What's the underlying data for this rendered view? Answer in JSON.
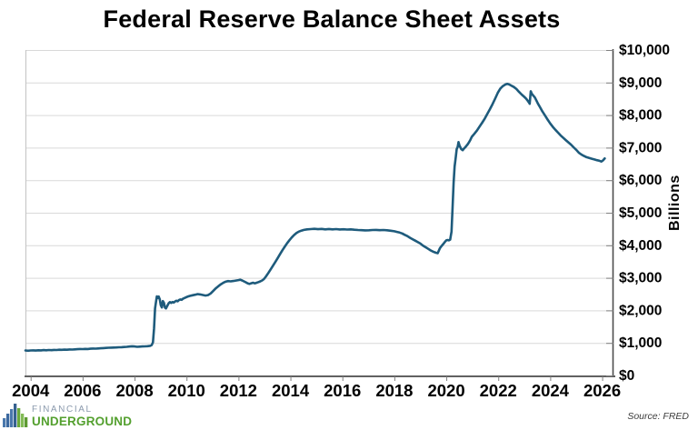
{
  "title": "Federal Reserve Balance Sheet Assets",
  "source_note": "Source: FRED",
  "logo": {
    "line1": "FINANCIAL",
    "line2": "UNDERGROUND",
    "financial_color": "#8b9aad",
    "underground_color": "#54a02f",
    "bars": [
      {
        "h": 10,
        "color": "#4a78ad"
      },
      {
        "h": 15,
        "color": "#3c699f"
      },
      {
        "h": 20,
        "color": "#4a78ad"
      },
      {
        "h": 26,
        "color": "#35618f"
      },
      {
        "h": 21,
        "color": "#6aa93c"
      },
      {
        "h": 15,
        "color": "#82bb55"
      },
      {
        "h": 11,
        "color": "#5d9a31"
      }
    ]
  },
  "chart_data": {
    "type": "line",
    "title": "Federal Reserve Balance Sheet Assets",
    "xlabel": "",
    "ylabel": "Billions",
    "xlim": [
      2003.8,
      2026.4
    ],
    "ylim": [
      0,
      10000
    ],
    "grid": "horizontal",
    "legend": "none",
    "y_axis_side": "right",
    "colors": {
      "gridline": "#d9d9d9",
      "plot_border": "#c3c3c3",
      "axis": "#4d4d4d",
      "tick": "#7f7f7f",
      "text": "#000000"
    },
    "x_ticks": [
      {
        "v": 2004,
        "label": "2004"
      },
      {
        "v": 2006,
        "label": "2006"
      },
      {
        "v": 2008,
        "label": "2008"
      },
      {
        "v": 2010,
        "label": "2010"
      },
      {
        "v": 2012,
        "label": "2012"
      },
      {
        "v": 2014,
        "label": "2014"
      },
      {
        "v": 2016,
        "label": "2016"
      },
      {
        "v": 2018,
        "label": "2018"
      },
      {
        "v": 2020,
        "label": "2020"
      },
      {
        "v": 2022,
        "label": "2022"
      },
      {
        "v": 2024,
        "label": "2024"
      },
      {
        "v": 2026,
        "label": "2026"
      }
    ],
    "y_ticks": [
      {
        "v": 0,
        "label": "$0"
      },
      {
        "v": 1000,
        "label": "$1,000"
      },
      {
        "v": 2000,
        "label": "$2,000"
      },
      {
        "v": 3000,
        "label": "$3,000"
      },
      {
        "v": 4000,
        "label": "$4,000"
      },
      {
        "v": 5000,
        "label": "$5,000"
      },
      {
        "v": 6000,
        "label": "$6,000"
      },
      {
        "v": 7000,
        "label": "$7,000"
      },
      {
        "v": 8000,
        "label": "$8,000"
      },
      {
        "v": 9000,
        "label": "$9,000"
      },
      {
        "v": 10000,
        "label": "$10,000"
      }
    ],
    "series": [
      {
        "name": "Federal Reserve Balance Sheet Assets ($ Billions)",
        "color": "#1e5b7c",
        "points": [
          [
            2003.8,
            768
          ],
          [
            2003.9,
            761
          ],
          [
            2004.0,
            767
          ],
          [
            2004.1,
            772
          ],
          [
            2004.2,
            766
          ],
          [
            2004.3,
            774
          ],
          [
            2004.4,
            770
          ],
          [
            2004.5,
            778
          ],
          [
            2004.6,
            774
          ],
          [
            2004.7,
            781
          ],
          [
            2004.8,
            777
          ],
          [
            2004.9,
            786
          ],
          [
            2005.0,
            783
          ],
          [
            2005.1,
            790
          ],
          [
            2005.2,
            787
          ],
          [
            2005.3,
            794
          ],
          [
            2005.4,
            791
          ],
          [
            2005.5,
            799
          ],
          [
            2005.6,
            796
          ],
          [
            2005.7,
            803
          ],
          [
            2005.8,
            807
          ],
          [
            2005.9,
            814
          ],
          [
            2006.0,
            811
          ],
          [
            2006.1,
            817
          ],
          [
            2006.2,
            814
          ],
          [
            2006.3,
            821
          ],
          [
            2006.4,
            827
          ],
          [
            2006.5,
            824
          ],
          [
            2006.6,
            831
          ],
          [
            2006.7,
            835
          ],
          [
            2006.8,
            841
          ],
          [
            2006.9,
            846
          ],
          [
            2007.0,
            851
          ],
          [
            2007.1,
            854
          ],
          [
            2007.2,
            857
          ],
          [
            2007.3,
            861
          ],
          [
            2007.4,
            865
          ],
          [
            2007.5,
            869
          ],
          [
            2007.6,
            873
          ],
          [
            2007.7,
            879
          ],
          [
            2007.8,
            889
          ],
          [
            2007.9,
            897
          ],
          [
            2008.0,
            891
          ],
          [
            2008.1,
            881
          ],
          [
            2008.2,
            886
          ],
          [
            2008.3,
            890
          ],
          [
            2008.4,
            894
          ],
          [
            2008.5,
            900
          ],
          [
            2008.6,
            912
          ],
          [
            2008.66,
            932
          ],
          [
            2008.71,
            1020
          ],
          [
            2008.75,
            1450
          ],
          [
            2008.79,
            2060
          ],
          [
            2008.83,
            2290
          ],
          [
            2008.86,
            2430
          ],
          [
            2008.9,
            2380
          ],
          [
            2008.93,
            2425
          ],
          [
            2008.97,
            2340
          ],
          [
            2009.01,
            2160
          ],
          [
            2009.05,
            2090
          ],
          [
            2009.09,
            2285
          ],
          [
            2009.13,
            2230
          ],
          [
            2009.17,
            2085
          ],
          [
            2009.21,
            2060
          ],
          [
            2009.26,
            2140
          ],
          [
            2009.31,
            2215
          ],
          [
            2009.36,
            2255
          ],
          [
            2009.41,
            2230
          ],
          [
            2009.46,
            2258
          ],
          [
            2009.51,
            2240
          ],
          [
            2009.56,
            2275
          ],
          [
            2009.61,
            2295
          ],
          [
            2009.66,
            2280
          ],
          [
            2009.71,
            2315
          ],
          [
            2009.76,
            2335
          ],
          [
            2009.81,
            2325
          ],
          [
            2009.86,
            2355
          ],
          [
            2009.91,
            2375
          ],
          [
            2009.96,
            2395
          ],
          [
            2010.03,
            2420
          ],
          [
            2010.13,
            2445
          ],
          [
            2010.23,
            2465
          ],
          [
            2010.33,
            2480
          ],
          [
            2010.43,
            2500
          ],
          [
            2010.53,
            2490
          ],
          [
            2010.63,
            2472
          ],
          [
            2010.73,
            2455
          ],
          [
            2010.83,
            2468
          ],
          [
            2010.93,
            2520
          ],
          [
            2011.03,
            2600
          ],
          [
            2011.13,
            2680
          ],
          [
            2011.23,
            2745
          ],
          [
            2011.33,
            2805
          ],
          [
            2011.43,
            2855
          ],
          [
            2011.5,
            2880
          ],
          [
            2011.6,
            2900
          ],
          [
            2011.7,
            2890
          ],
          [
            2011.8,
            2903
          ],
          [
            2011.9,
            2915
          ],
          [
            2012.0,
            2930
          ],
          [
            2012.07,
            2940
          ],
          [
            2012.14,
            2918
          ],
          [
            2012.21,
            2890
          ],
          [
            2012.28,
            2862
          ],
          [
            2012.35,
            2832
          ],
          [
            2012.42,
            2812
          ],
          [
            2012.49,
            2832
          ],
          [
            2012.56,
            2850
          ],
          [
            2012.63,
            2830
          ],
          [
            2012.7,
            2850
          ],
          [
            2012.77,
            2870
          ],
          [
            2012.84,
            2890
          ],
          [
            2012.91,
            2920
          ],
          [
            2012.98,
            2962
          ],
          [
            2013.06,
            3045
          ],
          [
            2013.15,
            3150
          ],
          [
            2013.24,
            3260
          ],
          [
            2013.33,
            3375
          ],
          [
            2013.42,
            3490
          ],
          [
            2013.51,
            3610
          ],
          [
            2013.6,
            3725
          ],
          [
            2013.69,
            3845
          ],
          [
            2013.78,
            3955
          ],
          [
            2013.87,
            4060
          ],
          [
            2013.96,
            4155
          ],
          [
            2014.05,
            4240
          ],
          [
            2014.14,
            4315
          ],
          [
            2014.23,
            4375
          ],
          [
            2014.32,
            4420
          ],
          [
            2014.42,
            4450
          ],
          [
            2014.52,
            4472
          ],
          [
            2014.64,
            4488
          ],
          [
            2014.78,
            4498
          ],
          [
            2014.92,
            4505
          ],
          [
            2015.06,
            4495
          ],
          [
            2015.2,
            4503
          ],
          [
            2015.34,
            4490
          ],
          [
            2015.48,
            4500
          ],
          [
            2015.62,
            4488
          ],
          [
            2015.76,
            4497
          ],
          [
            2015.9,
            4486
          ],
          [
            2016.04,
            4493
          ],
          [
            2016.18,
            4483
          ],
          [
            2016.32,
            4488
          ],
          [
            2016.46,
            4477
          ],
          [
            2016.6,
            4470
          ],
          [
            2016.74,
            4464
          ],
          [
            2016.88,
            4457
          ],
          [
            2017.02,
            4462
          ],
          [
            2017.16,
            4468
          ],
          [
            2017.3,
            4473
          ],
          [
            2017.44,
            4464
          ],
          [
            2017.58,
            4470
          ],
          [
            2017.72,
            4460
          ],
          [
            2017.86,
            4448
          ],
          [
            2018.0,
            4430
          ],
          [
            2018.1,
            4412
          ],
          [
            2018.2,
            4392
          ],
          [
            2018.3,
            4362
          ],
          [
            2018.4,
            4322
          ],
          [
            2018.5,
            4282
          ],
          [
            2018.6,
            4232
          ],
          [
            2018.7,
            4187
          ],
          [
            2018.8,
            4142
          ],
          [
            2018.9,
            4097
          ],
          [
            2019.0,
            4052
          ],
          [
            2019.1,
            3992
          ],
          [
            2019.2,
            3942
          ],
          [
            2019.3,
            3892
          ],
          [
            2019.4,
            3842
          ],
          [
            2019.5,
            3802
          ],
          [
            2019.6,
            3772
          ],
          [
            2019.67,
            3758
          ],
          [
            2019.71,
            3832
          ],
          [
            2019.75,
            3902
          ],
          [
            2019.8,
            3957
          ],
          [
            2019.85,
            4007
          ],
          [
            2019.9,
            4057
          ],
          [
            2019.95,
            4107
          ],
          [
            2020.0,
            4152
          ],
          [
            2020.05,
            4162
          ],
          [
            2020.1,
            4150
          ],
          [
            2020.15,
            4172
          ],
          [
            2020.2,
            4420
          ],
          [
            2020.24,
            5120
          ],
          [
            2020.28,
            5920
          ],
          [
            2020.32,
            6420
          ],
          [
            2020.36,
            6690
          ],
          [
            2020.4,
            6955
          ],
          [
            2020.44,
            7025
          ],
          [
            2020.47,
            7170
          ],
          [
            2020.5,
            7082
          ],
          [
            2020.54,
            7012
          ],
          [
            2020.58,
            6952
          ],
          [
            2020.63,
            6922
          ],
          [
            2020.68,
            6972
          ],
          [
            2020.73,
            7012
          ],
          [
            2020.78,
            7062
          ],
          [
            2020.83,
            7112
          ],
          [
            2020.88,
            7172
          ],
          [
            2020.93,
            7242
          ],
          [
            2020.98,
            7332
          ],
          [
            2021.08,
            7425
          ],
          [
            2021.18,
            7525
          ],
          [
            2021.28,
            7645
          ],
          [
            2021.38,
            7765
          ],
          [
            2021.48,
            7895
          ],
          [
            2021.58,
            8035
          ],
          [
            2021.68,
            8185
          ],
          [
            2021.78,
            8335
          ],
          [
            2021.88,
            8505
          ],
          [
            2021.98,
            8685
          ],
          [
            2022.08,
            8815
          ],
          [
            2022.18,
            8895
          ],
          [
            2022.28,
            8942
          ],
          [
            2022.35,
            8958
          ],
          [
            2022.42,
            8942
          ],
          [
            2022.5,
            8908
          ],
          [
            2022.6,
            8862
          ],
          [
            2022.7,
            8802
          ],
          [
            2022.8,
            8712
          ],
          [
            2022.9,
            8632
          ],
          [
            2023.0,
            8562
          ],
          [
            2023.07,
            8507
          ],
          [
            2023.13,
            8447
          ],
          [
            2023.18,
            8387
          ],
          [
            2023.21,
            8347
          ],
          [
            2023.25,
            8732
          ],
          [
            2023.29,
            8657
          ],
          [
            2023.35,
            8597
          ],
          [
            2023.41,
            8542
          ],
          [
            2023.47,
            8447
          ],
          [
            2023.53,
            8347
          ],
          [
            2023.61,
            8237
          ],
          [
            2023.7,
            8112
          ],
          [
            2023.8,
            7987
          ],
          [
            2023.9,
            7862
          ],
          [
            2024.0,
            7742
          ],
          [
            2024.1,
            7637
          ],
          [
            2024.2,
            7547
          ],
          [
            2024.3,
            7462
          ],
          [
            2024.4,
            7377
          ],
          [
            2024.5,
            7302
          ],
          [
            2024.6,
            7232
          ],
          [
            2024.7,
            7162
          ],
          [
            2024.8,
            7092
          ],
          [
            2024.9,
            7012
          ],
          [
            2025.0,
            6932
          ],
          [
            2025.1,
            6847
          ],
          [
            2025.2,
            6787
          ],
          [
            2025.3,
            6742
          ],
          [
            2025.4,
            6707
          ],
          [
            2025.5,
            6682
          ],
          [
            2025.6,
            6660
          ],
          [
            2025.7,
            6637
          ],
          [
            2025.8,
            6614
          ],
          [
            2025.9,
            6594
          ],
          [
            2025.97,
            6574
          ],
          [
            2026.03,
            6607
          ],
          [
            2026.1,
            6668
          ]
        ]
      }
    ]
  }
}
